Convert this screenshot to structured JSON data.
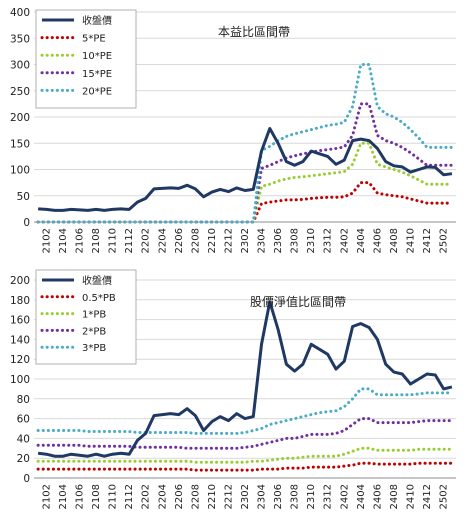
{
  "chart_data": [
    {
      "type": "line",
      "title": "本益比區間帶",
      "categories": [
        "2101",
        "2102",
        "2103",
        "2104",
        "2105",
        "2106",
        "2107",
        "2108",
        "2109",
        "2110",
        "2111",
        "2112",
        "2201",
        "2202",
        "2203",
        "2204",
        "2205",
        "2206",
        "2207",
        "2208",
        "2209",
        "2210",
        "2211",
        "2212",
        "2301",
        "2302",
        "2303",
        "2304",
        "2305",
        "2306",
        "2307",
        "2308",
        "2309",
        "2310",
        "2311",
        "2312",
        "2401",
        "2402",
        "2403",
        "2404",
        "2405",
        "2406",
        "2407",
        "2408",
        "2409",
        "2410",
        "2411",
        "2412",
        "2501",
        "2502",
        "2503"
      ],
      "x_tick_labels": [
        "2102",
        "2104",
        "2106",
        "2108",
        "2110",
        "2112",
        "2202",
        "2204",
        "2206",
        "2208",
        "2210",
        "2212",
        "2302",
        "2304",
        "2306",
        "2308",
        "2310",
        "2312",
        "2402",
        "2404",
        "2406",
        "2408",
        "2410",
        "2412",
        "2502"
      ],
      "ylim": [
        0,
        400
      ],
      "yticks": [
        "0",
        "50",
        "100",
        "150",
        "200",
        "250",
        "300",
        "350",
        "400"
      ],
      "grid": true,
      "legend_position": "top-left",
      "series": [
        {
          "name": "收盤價",
          "color": "#1f3864",
          "style": "solid",
          "values": [
            25,
            24,
            22,
            22,
            24,
            23,
            22,
            24,
            22,
            24,
            25,
            24,
            38,
            45,
            63,
            64,
            65,
            64,
            70,
            63,
            48,
            57,
            62,
            58,
            65,
            60,
            62,
            135,
            178,
            150,
            115,
            108,
            115,
            135,
            130,
            125,
            110,
            118,
            155,
            158,
            155,
            140,
            115,
            107,
            105,
            95,
            100,
            105,
            104,
            90,
            92
          ]
        },
        {
          "name": "5*PE",
          "color": "#c00000",
          "style": "dotted",
          "values": [
            0,
            0,
            0,
            0,
            0,
            0,
            0,
            0,
            0,
            0,
            0,
            0,
            0,
            0,
            0,
            0,
            0,
            0,
            0,
            0,
            0,
            0,
            0,
            0,
            0,
            0,
            0,
            35,
            38,
            40,
            42,
            42,
            43,
            45,
            46,
            47,
            47,
            48,
            55,
            75,
            75,
            55,
            52,
            50,
            48,
            44,
            40,
            36,
            36,
            36,
            36
          ]
        },
        {
          "name": "10*PE",
          "color": "#9acd32",
          "style": "dotted",
          "values": [
            0,
            0,
            0,
            0,
            0,
            0,
            0,
            0,
            0,
            0,
            0,
            0,
            0,
            0,
            0,
            0,
            0,
            0,
            0,
            0,
            0,
            0,
            0,
            0,
            0,
            0,
            0,
            68,
            72,
            78,
            82,
            85,
            86,
            88,
            90,
            92,
            94,
            96,
            110,
            150,
            150,
            110,
            105,
            100,
            95,
            88,
            80,
            72,
            72,
            72,
            72
          ]
        },
        {
          "name": "15*PE",
          "color": "#7030a0",
          "style": "dotted",
          "values": [
            0,
            0,
            0,
            0,
            0,
            0,
            0,
            0,
            0,
            0,
            0,
            0,
            0,
            0,
            0,
            0,
            0,
            0,
            0,
            0,
            0,
            0,
            0,
            0,
            0,
            0,
            0,
            102,
            108,
            115,
            122,
            126,
            130,
            133,
            136,
            138,
            140,
            143,
            165,
            225,
            225,
            165,
            155,
            150,
            142,
            132,
            120,
            108,
            108,
            108,
            108
          ]
        },
        {
          "name": "20*PE",
          "color": "#4bacc6",
          "style": "dotted",
          "values": [
            0,
            0,
            0,
            0,
            0,
            0,
            0,
            0,
            0,
            0,
            0,
            0,
            0,
            0,
            0,
            0,
            0,
            0,
            0,
            0,
            0,
            0,
            0,
            0,
            0,
            0,
            0,
            136,
            144,
            155,
            163,
            168,
            172,
            176,
            180,
            184,
            186,
            190,
            220,
            300,
            300,
            220,
            206,
            200,
            190,
            176,
            160,
            142,
            142,
            142,
            142
          ]
        }
      ]
    },
    {
      "type": "line",
      "title": "股價淨值比區間帶",
      "categories": [
        "2101",
        "2102",
        "2103",
        "2104",
        "2105",
        "2106",
        "2107",
        "2108",
        "2109",
        "2110",
        "2111",
        "2112",
        "2201",
        "2202",
        "2203",
        "2204",
        "2205",
        "2206",
        "2207",
        "2208",
        "2209",
        "2210",
        "2211",
        "2212",
        "2301",
        "2302",
        "2303",
        "2304",
        "2305",
        "2306",
        "2307",
        "2308",
        "2309",
        "2310",
        "2311",
        "2312",
        "2401",
        "2402",
        "2403",
        "2404",
        "2405",
        "2406",
        "2407",
        "2408",
        "2409",
        "2410",
        "2411",
        "2412",
        "2501",
        "2502",
        "2503"
      ],
      "x_tick_labels": [
        "2102",
        "2104",
        "2106",
        "2108",
        "2110",
        "2112",
        "2202",
        "2204",
        "2206",
        "2208",
        "2210",
        "2212",
        "2302",
        "2304",
        "2306",
        "2308",
        "2310",
        "2312",
        "2402",
        "2404",
        "2406",
        "2408",
        "2410",
        "2412",
        "2502"
      ],
      "ylim": [
        0,
        200
      ],
      "yticks": [
        "0",
        "20",
        "40",
        "60",
        "80",
        "100",
        "120",
        "140",
        "160",
        "180",
        "200"
      ],
      "grid": true,
      "legend_position": "top-left",
      "series": [
        {
          "name": "收盤價",
          "color": "#1f3864",
          "style": "solid",
          "values": [
            25,
            24,
            22,
            22,
            24,
            23,
            22,
            24,
            22,
            24,
            25,
            24,
            38,
            45,
            63,
            64,
            65,
            64,
            70,
            63,
            48,
            57,
            62,
            58,
            65,
            60,
            62,
            135,
            178,
            150,
            115,
            108,
            115,
            135,
            130,
            125,
            110,
            118,
            153,
            156,
            152,
            140,
            115,
            107,
            105,
            95,
            100,
            105,
            104,
            90,
            92
          ]
        },
        {
          "name": "0.5*PB",
          "color": "#c00000",
          "style": "dotted",
          "values": [
            9,
            9,
            9,
            9,
            9,
            9,
            9,
            9,
            9,
            9,
            9,
            9,
            9,
            9,
            9,
            9,
            9,
            9,
            9,
            8,
            8,
            8,
            8,
            8,
            8,
            8,
            8,
            9,
            9,
            9,
            10,
            10,
            10,
            11,
            11,
            11,
            11,
            12,
            13,
            15,
            15,
            14,
            14,
            14,
            14,
            14,
            15,
            15,
            15,
            15,
            15
          ]
        },
        {
          "name": "1*PB",
          "color": "#9acd32",
          "style": "dotted",
          "values": [
            17,
            17,
            17,
            17,
            17,
            17,
            17,
            17,
            17,
            17,
            17,
            17,
            17,
            17,
            17,
            17,
            17,
            17,
            17,
            16,
            16,
            16,
            16,
            16,
            16,
            16,
            17,
            17,
            18,
            19,
            20,
            20,
            21,
            22,
            22,
            22,
            22,
            24,
            27,
            30,
            30,
            28,
            28,
            28,
            28,
            28,
            29,
            29,
            29,
            29,
            29
          ]
        },
        {
          "name": "2*PB",
          "color": "#7030a0",
          "style": "dotted",
          "values": [
            33,
            33,
            33,
            33,
            33,
            33,
            32,
            32,
            32,
            32,
            32,
            32,
            31,
            31,
            31,
            31,
            31,
            31,
            30,
            30,
            30,
            30,
            30,
            30,
            30,
            31,
            32,
            34,
            36,
            38,
            40,
            40,
            42,
            44,
            44,
            44,
            45,
            48,
            54,
            60,
            60,
            56,
            56,
            56,
            56,
            56,
            57,
            58,
            58,
            58,
            58
          ]
        },
        {
          "name": "3*PB",
          "color": "#4bacc6",
          "style": "dotted",
          "values": [
            48,
            48,
            48,
            48,
            48,
            48,
            47,
            47,
            47,
            47,
            47,
            47,
            46,
            46,
            46,
            46,
            46,
            46,
            46,
            45,
            45,
            45,
            45,
            45,
            45,
            46,
            48,
            50,
            54,
            56,
            58,
            60,
            62,
            64,
            66,
            67,
            68,
            72,
            80,
            90,
            90,
            84,
            84,
            84,
            84,
            84,
            85,
            86,
            86,
            86,
            86
          ]
        }
      ]
    }
  ]
}
